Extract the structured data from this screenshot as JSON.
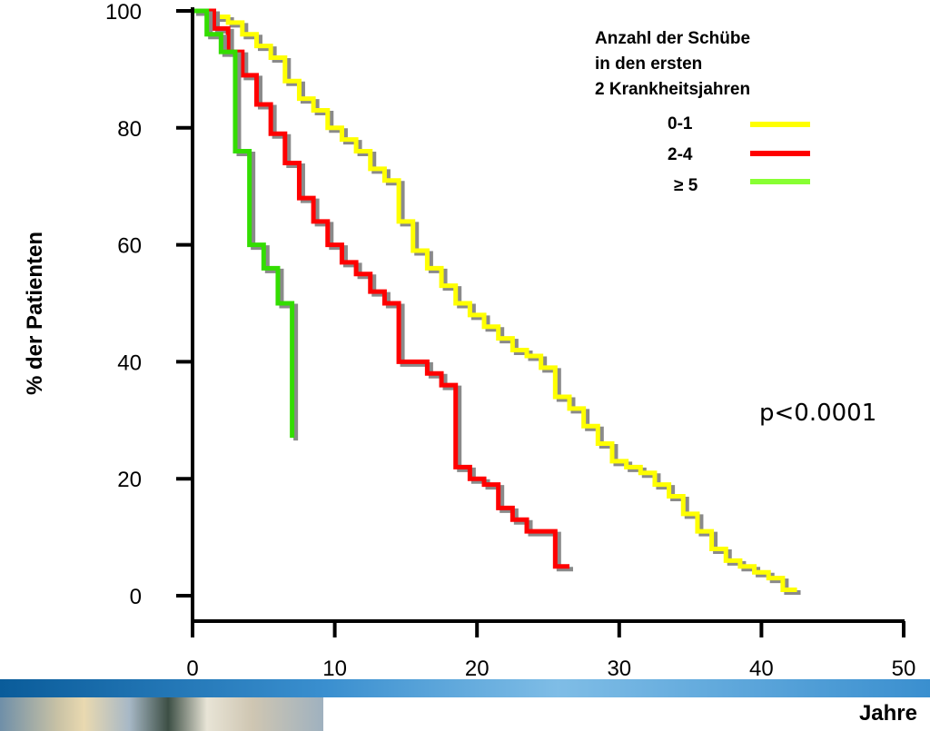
{
  "chart_data": {
    "type": "line",
    "step": true,
    "title": "",
    "xlabel": "Jahre",
    "ylabel": "% der Patienten",
    "xlim": [
      0,
      50
    ],
    "ylim": [
      0,
      100
    ],
    "x_ticks": [
      0,
      10,
      20,
      30,
      40,
      50
    ],
    "y_ticks": [
      0,
      20,
      40,
      60,
      80,
      100
    ],
    "legend": {
      "title_lines": [
        "Anzahl der Schübe",
        "in den ersten",
        "2 Krankheitsjahren"
      ],
      "placement": "top-right"
    },
    "annotation": "p<0.0001",
    "series": [
      {
        "name": "0-1",
        "color": "#ffff00",
        "x": [
          0,
          1.5,
          2.5,
          3.5,
          4.5,
          5.5,
          6.5,
          7.5,
          8.5,
          9.5,
          10.5,
          11.5,
          12.5,
          13.5,
          14.5,
          15.5,
          16.5,
          17.5,
          18.5,
          19.5,
          20.5,
          21.5,
          22.5,
          23.5,
          24.5,
          25.5,
          26.5,
          27.5,
          28.5,
          29.5,
          30.5,
          31.5,
          32.5,
          33.5,
          34.5,
          35.5,
          36.5,
          37.5,
          38.5,
          39.5,
          40.5,
          41.5,
          42.5
        ],
        "y": [
          100,
          99,
          98,
          96,
          94,
          92,
          88,
          85,
          83,
          80,
          78,
          76,
          73,
          71,
          64,
          59,
          56,
          53,
          50,
          48,
          46,
          44,
          42,
          41,
          39,
          34,
          32,
          29,
          26,
          23,
          22,
          21,
          19,
          17,
          14,
          11,
          8,
          6,
          5,
          4,
          3,
          1,
          1
        ]
      },
      {
        "name": "2-4",
        "color": "#ff0000",
        "x": [
          0,
          1.5,
          2.5,
          3.5,
          4.5,
          5.5,
          6.5,
          7.5,
          8.5,
          9.5,
          10.5,
          11.5,
          12.5,
          13.5,
          14.5,
          15.5,
          16.5,
          17.5,
          18.5,
          19.5,
          20.5,
          21.5,
          22.5,
          23.5,
          24.5,
          25.5,
          26.5
        ],
        "y": [
          100,
          97,
          93,
          89,
          84,
          79,
          74,
          68,
          64,
          60,
          57,
          55,
          52,
          50,
          40,
          40,
          38,
          36,
          22,
          20,
          19,
          15,
          13,
          11,
          11,
          5,
          5
        ]
      },
      {
        "name": "≥ 5",
        "color": "#33dd00",
        "x": [
          0,
          1,
          2,
          3,
          4,
          5,
          6,
          7
        ],
        "y": [
          100,
          96,
          93,
          76,
          60,
          56,
          50,
          27
        ]
      }
    ]
  }
}
